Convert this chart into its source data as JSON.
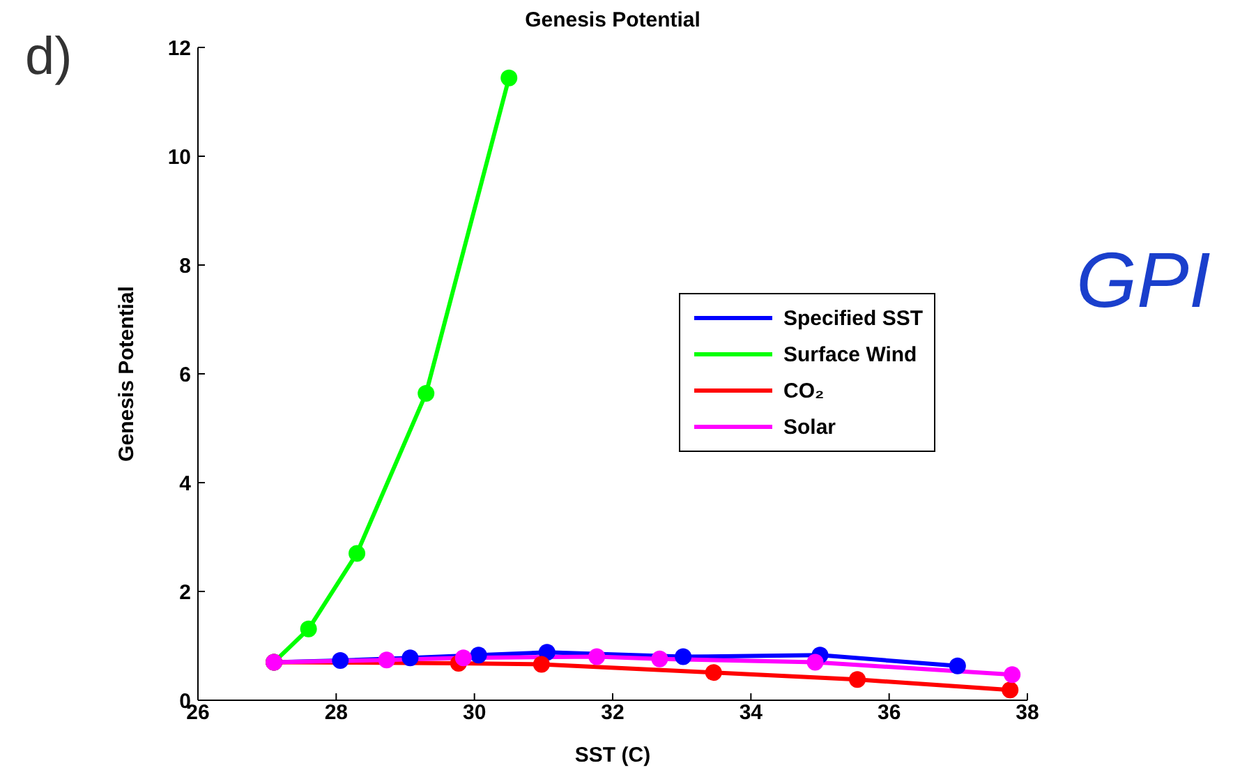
{
  "chart_data": {
    "type": "line",
    "title": "Genesis Potential",
    "xlabel": "SST (C)",
    "ylabel": "Genesis Potential",
    "annotations": [
      "d)",
      "GPI"
    ],
    "xlim": [
      26,
      38
    ],
    "xticks": [
      26,
      28,
      30,
      32,
      34,
      36,
      38
    ],
    "ylim": [
      0,
      12
    ],
    "yticks": [
      0,
      2,
      4,
      6,
      8,
      10,
      12
    ],
    "grid": false,
    "legend": "right",
    "marker": "circle",
    "line_style": "solid",
    "series": [
      {
        "name": "Specified SST",
        "color": "#0000ff",
        "x": [
          27.1,
          28.06,
          29.07,
          30.06,
          31.05,
          33.02,
          35.0,
          36.99
        ],
        "values": [
          0.7,
          0.73,
          0.78,
          0.83,
          0.88,
          0.8,
          0.83,
          0.63
        ]
      },
      {
        "name": "Surface Wind",
        "color": "#00ff00",
        "x": [
          27.1,
          27.6,
          28.3,
          29.3,
          30.5
        ],
        "values": [
          0.7,
          1.31,
          2.7,
          5.64,
          11.44
        ]
      },
      {
        "name": "CO₂",
        "color": "#ff0000",
        "x": [
          27.1,
          29.77,
          30.97,
          33.46,
          35.54,
          37.75
        ],
        "values": [
          0.7,
          0.68,
          0.66,
          0.51,
          0.38,
          0.19
        ]
      },
      {
        "name": "Solar",
        "color": "#ff00ff",
        "x": [
          27.1,
          28.73,
          29.84,
          31.77,
          32.68,
          34.93,
          37.78
        ],
        "values": [
          0.7,
          0.74,
          0.78,
          0.8,
          0.76,
          0.7,
          0.47
        ]
      }
    ]
  }
}
